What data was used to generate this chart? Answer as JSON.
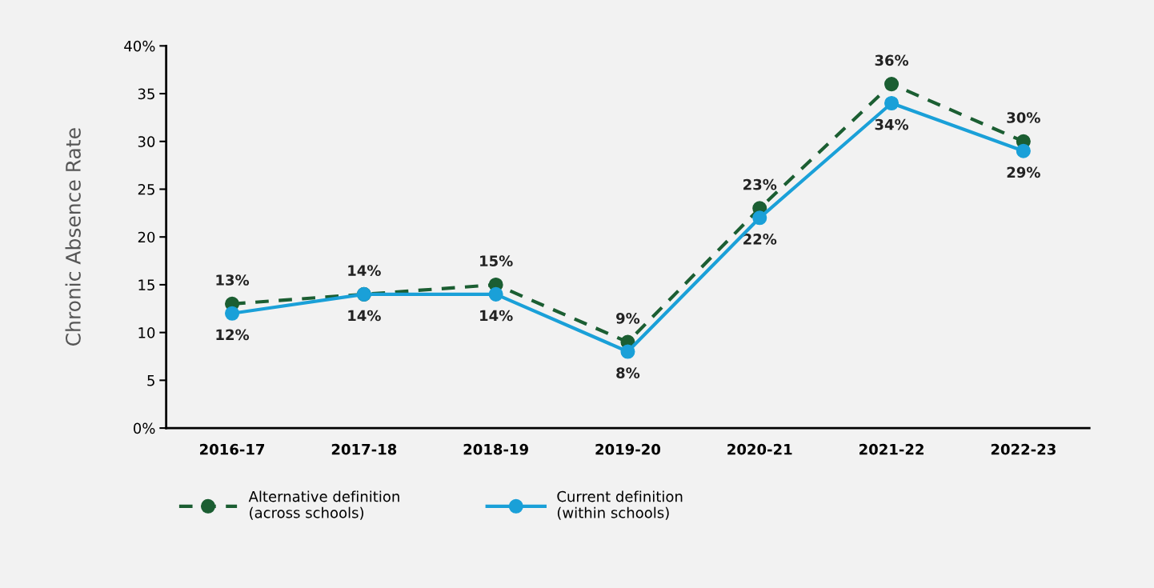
{
  "chart_data": {
    "type": "line",
    "ylabel": "Chronic Absence Rate",
    "categories": [
      "2016-17",
      "2017-18",
      "2018-19",
      "2019-20",
      "2020-21",
      "2021-22",
      "2022-23"
    ],
    "series": [
      {
        "name": "Alternative definition\n(across schools)",
        "color": "#1b5e32",
        "line_style": "dashed",
        "values": [
          13,
          14,
          15,
          9,
          23,
          36,
          30
        ],
        "value_labels": [
          "13%",
          "14%",
          "15%",
          "9%",
          "23%",
          "36%",
          "30%"
        ]
      },
      {
        "name": "Current definition\n(within schools)",
        "color": "#1aa0d8",
        "line_style": "solid",
        "values": [
          12,
          14,
          14,
          8,
          22,
          34,
          29
        ],
        "value_labels": [
          "12%",
          "14%",
          "14%",
          "8%",
          "22%",
          "34%",
          "29%"
        ]
      }
    ],
    "ylim": [
      0,
      40
    ],
    "yticks": [
      {
        "value": 0,
        "label": "0%"
      },
      5,
      10,
      15,
      20,
      25,
      30,
      35,
      {
        "value": 40,
        "label": "40%"
      }
    ],
    "marker": "circle",
    "grid": false,
    "legend": "bottom"
  }
}
